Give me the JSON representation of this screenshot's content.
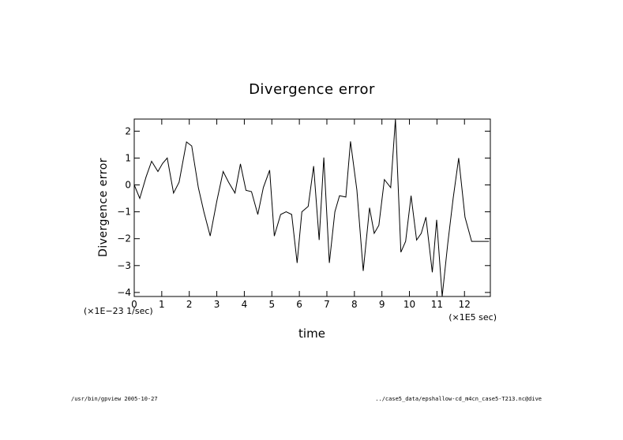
{
  "chart_data": {
    "type": "line",
    "title": "Divergence error",
    "xlabel": "time",
    "ylabel": "Divergence error",
    "x_scale_note": "(×1E5 sec)",
    "y_scale_note": "(×1E−23 1/sec)",
    "xlim": [
      0,
      12.94
    ],
    "ylim": [
      -4.15,
      2.45
    ],
    "x_ticks": [
      "0",
      "1",
      "2",
      "3",
      "4",
      "5",
      "6",
      "7",
      "8",
      "9",
      "10",
      "11",
      "12"
    ],
    "y_ticks": [
      "−4",
      "−3",
      "−2",
      "−1",
      "0",
      "1",
      "2"
    ],
    "grid": false,
    "series": [
      {
        "x": [
          0,
          0.2,
          0.43,
          0.63,
          0.86,
          1.03,
          1.2,
          1.43,
          1.63,
          1.9,
          2.09,
          2.33,
          2.53,
          2.76,
          3.0,
          3.23,
          3.43,
          3.66,
          3.86,
          4.06,
          4.26,
          4.49,
          4.69,
          4.92,
          5.09,
          5.32,
          5.52,
          5.72,
          5.92,
          6.09,
          6.32,
          6.52,
          6.72,
          6.89,
          7.09,
          7.29,
          7.46,
          7.69,
          7.86,
          8.09,
          8.32,
          8.55,
          8.72,
          8.89,
          9.09,
          9.32,
          9.49,
          9.69,
          9.86,
          10.06,
          10.26,
          10.43,
          10.6,
          10.83,
          10.99,
          11.19,
          11.39,
          11.59,
          11.79,
          12.02,
          12.26,
          12.46,
          12.69,
          12.89
        ],
        "y": [
          0,
          -0.5,
          0.3,
          0.88,
          0.5,
          0.8,
          1.0,
          -0.3,
          0.1,
          1.6,
          1.45,
          -0.1,
          -1.0,
          -1.9,
          -0.6,
          0.5,
          0.1,
          -0.3,
          0.78,
          -0.2,
          -0.25,
          -1.1,
          -0.1,
          0.55,
          -1.9,
          -1.1,
          -1.0,
          -1.1,
          -2.9,
          -1.0,
          -0.8,
          0.7,
          -2.05,
          1.02,
          -2.9,
          -1.0,
          -0.4,
          -0.45,
          1.62,
          -0.2,
          -3.2,
          -0.85,
          -1.8,
          -1.5,
          0.2,
          -0.1,
          2.45,
          -2.5,
          -2.1,
          -0.4,
          -2.05,
          -1.8,
          -1.2,
          -3.25,
          -1.3,
          -4.15,
          -2.2,
          -0.5,
          1.0,
          -1.2,
          -2.1,
          -2.1,
          -2.1,
          -2.1
        ]
      }
    ]
  },
  "footer": {
    "left": "/usr/bin/gpview  2005-10-27",
    "right": "../case5_data/epshallow-cd_m4cn_case5-T213.nc@dive"
  }
}
